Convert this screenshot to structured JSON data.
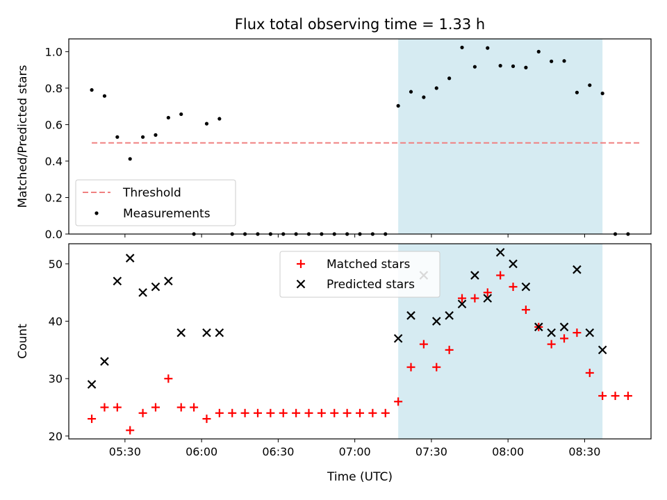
{
  "chart_data": [
    {
      "type": "scatter",
      "title": "Flux total observing time = 1.33 h",
      "ylabel": "Matched/Predicted stars",
      "xlabel": "",
      "ylim": [
        0,
        1.07
      ],
      "yticks": [
        "0.0",
        "0.2",
        "0.4",
        "0.6",
        "0.8",
        "1.0"
      ],
      "shaded_span": {
        "start": "07:17",
        "end": "08:37",
        "color": "#add8e6"
      },
      "threshold": {
        "name": "Threshold",
        "value": 0.5,
        "start": "05:17",
        "end": "08:52",
        "color": "#f08080",
        "style": "dashed"
      },
      "legend": {
        "position": "lower-left",
        "entries": [
          "Threshold",
          "Measurements"
        ]
      },
      "series": [
        {
          "name": "Measurements",
          "marker": "dot",
          "color": "#000000",
          "points": [
            [
              "05:17",
              0.79
            ],
            [
              "05:22",
              0.757
            ],
            [
              "05:27",
              0.532
            ],
            [
              "05:32",
              0.412
            ],
            [
              "05:37",
              0.532
            ],
            [
              "05:42",
              0.543
            ],
            [
              "05:47",
              0.638
            ],
            [
              "05:52",
              0.657
            ],
            [
              "05:57",
              0.0
            ],
            [
              "06:02",
              0.605
            ],
            [
              "06:07",
              0.632
            ],
            [
              "06:12",
              0.0
            ],
            [
              "06:17",
              0.0
            ],
            [
              "06:22",
              0.0
            ],
            [
              "06:27",
              0.0
            ],
            [
              "06:32",
              0.0
            ],
            [
              "06:37",
              0.0
            ],
            [
              "06:42",
              0.0
            ],
            [
              "06:47",
              0.0
            ],
            [
              "06:52",
              0.0
            ],
            [
              "06:57",
              0.0
            ],
            [
              "07:02",
              0.0
            ],
            [
              "07:07",
              0.0
            ],
            [
              "07:12",
              0.0
            ],
            [
              "07:17",
              0.703
            ],
            [
              "07:22",
              0.78
            ],
            [
              "07:27",
              0.75
            ],
            [
              "07:32",
              0.8
            ],
            [
              "07:37",
              0.854
            ],
            [
              "07:42",
              1.023
            ],
            [
              "07:47",
              0.917
            ],
            [
              "07:52",
              1.02
            ],
            [
              "07:57",
              0.923
            ],
            [
              "08:02",
              0.92
            ],
            [
              "08:07",
              0.913
            ],
            [
              "08:12",
              1.0
            ],
            [
              "08:17",
              0.947
            ],
            [
              "08:22",
              0.949
            ],
            [
              "08:27",
              0.776
            ],
            [
              "08:32",
              0.816
            ],
            [
              "08:37",
              0.771
            ],
            [
              "08:42",
              0.0
            ],
            [
              "08:47",
              0.0
            ]
          ]
        }
      ]
    },
    {
      "type": "scatter",
      "title": "",
      "ylabel": "Count",
      "xlabel": "Time (UTC)",
      "ylim": [
        19.5,
        53.5
      ],
      "yticks": [
        "20",
        "30",
        "40",
        "50"
      ],
      "xticks": [
        "05:30",
        "06:00",
        "06:30",
        "07:00",
        "07:30",
        "08:00",
        "08:30"
      ],
      "shaded_span": {
        "start": "07:17",
        "end": "08:37",
        "color": "#add8e6"
      },
      "legend": {
        "position": "upper-center",
        "entries": [
          "Matched stars",
          "Predicted stars"
        ]
      },
      "series": [
        {
          "name": "Matched stars",
          "marker": "plus",
          "color": "#ff0000",
          "points": [
            [
              "05:17",
              23
            ],
            [
              "05:22",
              25
            ],
            [
              "05:27",
              25
            ],
            [
              "05:32",
              21
            ],
            [
              "05:37",
              24
            ],
            [
              "05:42",
              25
            ],
            [
              "05:47",
              30
            ],
            [
              "05:52",
              25
            ],
            [
              "05:57",
              25
            ],
            [
              "06:02",
              23
            ],
            [
              "06:07",
              24
            ],
            [
              "06:12",
              24
            ],
            [
              "06:17",
              24
            ],
            [
              "06:22",
              24
            ],
            [
              "06:27",
              24
            ],
            [
              "06:32",
              24
            ],
            [
              "06:37",
              24
            ],
            [
              "06:42",
              24
            ],
            [
              "06:47",
              24
            ],
            [
              "06:52",
              24
            ],
            [
              "06:57",
              24
            ],
            [
              "07:02",
              24
            ],
            [
              "07:07",
              24
            ],
            [
              "07:12",
              24
            ],
            [
              "07:17",
              26
            ],
            [
              "07:22",
              32
            ],
            [
              "07:27",
              36
            ],
            [
              "07:32",
              32
            ],
            [
              "07:37",
              35
            ],
            [
              "07:42",
              44
            ],
            [
              "07:47",
              44
            ],
            [
              "07:52",
              45
            ],
            [
              "07:57",
              48
            ],
            [
              "08:02",
              46
            ],
            [
              "08:07",
              42
            ],
            [
              "08:12",
              39
            ],
            [
              "08:17",
              36
            ],
            [
              "08:22",
              37
            ],
            [
              "08:27",
              38
            ],
            [
              "08:32",
              31
            ],
            [
              "08:37",
              27
            ],
            [
              "08:42",
              27
            ],
            [
              "08:47",
              27
            ]
          ]
        },
        {
          "name": "Predicted stars",
          "marker": "x",
          "color": "#000000",
          "points": [
            [
              "05:17",
              29
            ],
            [
              "05:22",
              33
            ],
            [
              "05:27",
              47
            ],
            [
              "05:32",
              51
            ],
            [
              "05:37",
              45
            ],
            [
              "05:42",
              46
            ],
            [
              "05:47",
              47
            ],
            [
              "05:52",
              38
            ],
            [
              "06:02",
              38
            ],
            [
              "06:07",
              38
            ],
            [
              "07:17",
              37
            ],
            [
              "07:22",
              41
            ],
            [
              "07:27",
              48
            ],
            [
              "07:32",
              40
            ],
            [
              "07:37",
              41
            ],
            [
              "07:42",
              43
            ],
            [
              "07:47",
              48
            ],
            [
              "07:52",
              44
            ],
            [
              "07:57",
              52
            ],
            [
              "08:02",
              50
            ],
            [
              "08:07",
              46
            ],
            [
              "08:12",
              39
            ],
            [
              "08:17",
              38
            ],
            [
              "08:22",
              39
            ],
            [
              "08:27",
              49
            ],
            [
              "08:32",
              38
            ],
            [
              "08:37",
              35
            ]
          ]
        }
      ]
    }
  ]
}
